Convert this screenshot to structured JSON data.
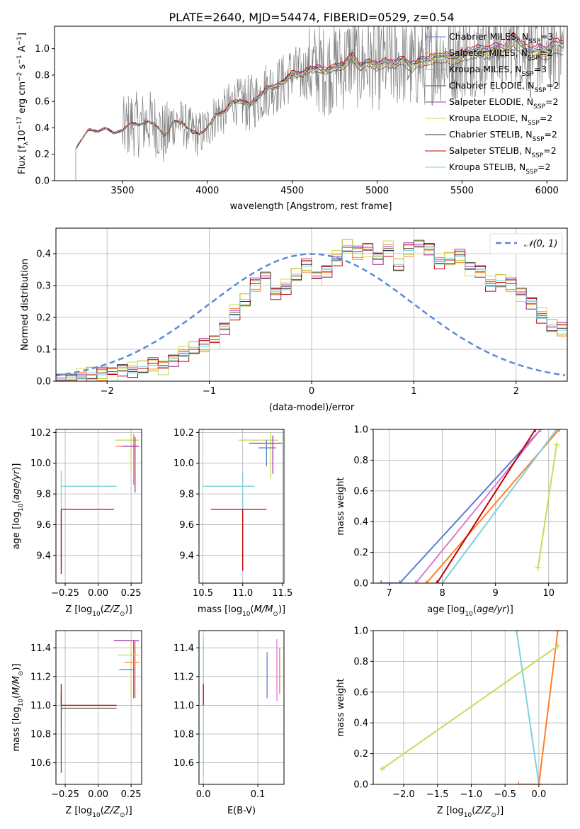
{
  "figure_title": "PLATE=2640, MJD=54474, FIBERID=0529, z=0.54",
  "colors": {
    "chabrier_miles": "#5b7fd6",
    "salpeter_miles": "#b8b800",
    "kroupa_miles": "#ff7f2a",
    "chabrier_elodie": "#555555",
    "salpeter_elodie": "#9b30b0",
    "kroupa_elodie": "#c6dc5a",
    "chabrier_stelib": "#333333",
    "salpeter_stelib": "#c00000",
    "kroupa_stelib": "#7fd0dc",
    "data": "#808080",
    "gaussian": "#5b8ad6",
    "grid": "#b0b0b0"
  },
  "chart_data": [
    {
      "id": "spectrum",
      "type": "line",
      "title": "PLATE=2640, MJD=54474, FIBERID=0529, z=0.54",
      "xlabel": "wavelength [Angstrom, rest frame]",
      "ylabel_parts": [
        "Flux [f",
        "λ",
        "10",
        "−17",
        " erg cm",
        "−2",
        " s",
        "−1",
        " A",
        "−1",
        "]"
      ],
      "xlim": [
        3100,
        6120
      ],
      "ylim": [
        0,
        1.17
      ],
      "xticks": [
        3500,
        4000,
        4500,
        5000,
        5500,
        6000
      ],
      "yticks": [
        0.0,
        0.2,
        0.4,
        0.6,
        0.8,
        1.0
      ],
      "grid": false,
      "legend_position": "top-right",
      "legend": [
        {
          "label": "Chabrier MILES, N",
          "sub": "SSP",
          "suffix": "=3",
          "color": "#5b7fd6"
        },
        {
          "label": "Salpeter MILES, N",
          "sub": "SSP",
          "suffix": "=2",
          "color": "#b8b800"
        },
        {
          "label": "Kroupa MILES, N",
          "sub": "SSP",
          "suffix": "=3",
          "color": "#ff7f2a"
        },
        {
          "label": "Chabrier ELODIE, N",
          "sub": "SSP",
          "suffix": "=2",
          "color": "#555555"
        },
        {
          "label": "Salpeter ELODIE, N",
          "sub": "SSP",
          "suffix": "=2",
          "color": "#9b30b0"
        },
        {
          "label": "Kroupa ELODIE, N",
          "sub": "SSP",
          "suffix": "=2",
          "color": "#c6dc5a"
        },
        {
          "label": "Chabrier STELIB, N",
          "sub": "SSP",
          "suffix": "=2",
          "color": "#333333"
        },
        {
          "label": "Salpeter STELIB, N",
          "sub": "SSP",
          "suffix": "=2",
          "color": "#c00000"
        },
        {
          "label": "Kroupa STELIB, N",
          "sub": "SSP",
          "suffix": "=2",
          "color": "#7fd0dc"
        }
      ],
      "model_continuum": {
        "x": [
          3225,
          3300,
          3350,
          3400,
          3450,
          3500,
          3550,
          3600,
          3650,
          3700,
          3750,
          3800,
          3850,
          3900,
          3950,
          4000,
          4050,
          4100,
          4150,
          4200,
          4250,
          4300,
          4350,
          4400,
          4450,
          4500,
          4550,
          4600,
          4650,
          4700,
          4750,
          4800,
          4850,
          4900,
          4950,
          5000,
          5050,
          5100,
          5150,
          5200,
          5250,
          5300,
          5350,
          5400,
          5450,
          5500,
          5550,
          5600,
          5650,
          5700,
          5750,
          5800,
          5850,
          5900,
          5950,
          6000,
          6050,
          6100
        ],
        "y": [
          0.24,
          0.39,
          0.37,
          0.4,
          0.36,
          0.38,
          0.44,
          0.42,
          0.45,
          0.42,
          0.33,
          0.45,
          0.44,
          0.38,
          0.35,
          0.4,
          0.5,
          0.52,
          0.6,
          0.6,
          0.58,
          0.63,
          0.7,
          0.71,
          0.75,
          0.82,
          0.8,
          0.84,
          0.85,
          0.83,
          0.86,
          0.87,
          0.95,
          0.86,
          0.9,
          0.87,
          0.9,
          0.88,
          0.92,
          0.86,
          0.9,
          0.91,
          0.93,
          0.94,
          0.92,
          0.95,
          0.97,
          0.99,
          0.97,
          1.0,
          0.98,
          1.08,
          1.02,
          0.96,
          0.99,
          0.97,
          1.03,
          1.01
        ]
      },
      "series_offsets": [
        0.03,
        0.0,
        -0.03,
        -0.06,
        0.02,
        0.01,
        0.0,
        0.05,
        -0.01
      ]
    },
    {
      "id": "residuals",
      "type": "histogram",
      "xlabel": "(data-model)/error",
      "ylabel": "Normed distribution",
      "xlim": [
        -2.5,
        2.5
      ],
      "ylim": [
        0,
        0.48
      ],
      "xticks": [
        -2,
        -1,
        0,
        1,
        2
      ],
      "yticks": [
        0.0,
        0.1,
        0.2,
        0.3,
        0.4
      ],
      "grid": true,
      "legend_position": "top-right",
      "legend": [
        {
          "label": "𝒩(0, 1)",
          "color": "#5b8ad6",
          "style": "dashed"
        }
      ],
      "bin_width": 0.1,
      "bins_from": -2.5,
      "base_values": [
        0.01,
        0.01,
        0.01,
        0.02,
        0.02,
        0.03,
        0.04,
        0.03,
        0.04,
        0.05,
        0.05,
        0.07,
        0.08,
        0.1,
        0.11,
        0.13,
        0.17,
        0.21,
        0.25,
        0.3,
        0.33,
        0.28,
        0.29,
        0.33,
        0.36,
        0.33,
        0.35,
        0.38,
        0.42,
        0.4,
        0.42,
        0.39,
        0.41,
        0.36,
        0.41,
        0.43,
        0.42,
        0.37,
        0.38,
        0.39,
        0.36,
        0.35,
        0.3,
        0.31,
        0.3,
        0.28,
        0.25,
        0.2,
        0.17,
        0.16,
        0.15,
        0.12,
        0.11,
        0.1,
        0.09,
        0.08,
        0.07,
        0.06,
        0.05,
        0.04,
        0.03,
        0.03,
        0.02,
        0.02,
        0.02,
        0.03,
        0.03,
        0.02,
        0.03,
        0.02,
        0.02,
        0.02,
        0.02,
        0.02,
        0.02,
        0.02
      ],
      "series_jitter": [
        0.0,
        0.02,
        -0.015,
        0.01,
        -0.02,
        0.025,
        -0.01,
        0.015,
        -0.005
      ]
    },
    {
      "id": "z-age",
      "type": "scatter",
      "xlabel": "Z [log10(Z/Z☉)]",
      "ylabel": "age  [log10(age/yr)]",
      "xlim": [
        -0.32,
        0.33
      ],
      "ylim": [
        9.22,
        10.22
      ],
      "xticks": [
        -0.25,
        0.0,
        0.25
      ],
      "yticks": [
        9.4,
        9.6,
        9.8,
        10.0,
        10.2
      ],
      "grid": true,
      "points": [
        {
          "x": -0.28,
          "xerr": [
            0.0,
            0.42
          ],
          "y": 9.85,
          "yerr": [
            0.5,
            0.1
          ],
          "color": "#7fd0dc"
        },
        {
          "x": -0.28,
          "xerr": [
            0.0,
            0.4
          ],
          "y": 9.7,
          "yerr": [
            0.42,
            0.0
          ],
          "color": "#c00000"
        },
        {
          "x": 0.25,
          "xerr": [
            0.12,
            0.06
          ],
          "y": 10.15,
          "yerr": [
            0.2,
            0.05
          ],
          "color": "#c6dc5a"
        },
        {
          "x": 0.27,
          "xerr": [
            0.14,
            0.04
          ],
          "y": 10.11,
          "yerr": [
            0.25,
            0.08
          ],
          "color": "#ff7f2a"
        },
        {
          "x": 0.28,
          "xerr": [
            0.1,
            0.03
          ],
          "y": 10.11,
          "yerr": [
            0.3,
            0.06
          ],
          "color": "#9b30b0"
        }
      ]
    },
    {
      "id": "mass-age",
      "type": "scatter",
      "xlabel": "mass [log10(M/M☉)]",
      "ylabel": "",
      "xlim": [
        10.45,
        11.52
      ],
      "ylim": [
        9.22,
        10.22
      ],
      "xticks": [
        10.5,
        11.0,
        11.5
      ],
      "yticks": [
        9.4,
        9.6,
        9.8,
        10.0,
        10.2
      ],
      "grid": true,
      "points": [
        {
          "x": 11.0,
          "xerr": [
            0.5,
            0.15
          ],
          "y": 9.85,
          "yerr": [
            0.55,
            0.1
          ],
          "color": "#7fd0dc"
        },
        {
          "x": 11.0,
          "xerr": [
            0.4,
            0.3
          ],
          "y": 9.7,
          "yerr": [
            0.4,
            0.0
          ],
          "color": "#c00000"
        },
        {
          "x": 11.35,
          "xerr": [
            0.4,
            0.1
          ],
          "y": 10.15,
          "yerr": [
            0.25,
            0.05
          ],
          "color": "#c6dc5a"
        },
        {
          "x": 11.38,
          "xerr": [
            0.3,
            0.12
          ],
          "y": 10.13,
          "yerr": [
            0.2,
            0.05
          ],
          "color": "#9b30b0"
        },
        {
          "x": 11.3,
          "xerr": [
            0.1,
            0.12
          ],
          "y": 10.1,
          "yerr": [
            0.12,
            0.05
          ],
          "color": "#5b7fd6"
        }
      ]
    },
    {
      "id": "age-cdf",
      "type": "line",
      "xlabel": "age  [log10(age/yr)]",
      "ylabel": "mass weight",
      "xlim": [
        6.7,
        10.35
      ],
      "ylim": [
        0,
        1.0
      ],
      "xticks": [
        7,
        8,
        9,
        10
      ],
      "yticks": [
        0.0,
        0.2,
        0.4,
        0.6,
        0.8,
        1.0
      ],
      "grid": true,
      "series": [
        {
          "x": [
            6.85,
            7.2,
            9.85
          ],
          "y": [
            0.0,
            0.0,
            1.0
          ],
          "color": "#5b7fd6"
        },
        {
          "x": [
            7.7,
            10.2
          ],
          "y": [
            0.0,
            1.0
          ],
          "color": "#ff7f2a"
        },
        {
          "x": [
            8.0,
            10.15
          ],
          "y": [
            0.0,
            1.0
          ],
          "color": "#7fd0dc"
        },
        {
          "x": [
            7.5,
            9.85
          ],
          "y": [
            0.0,
            1.0
          ],
          "color": "#e07ad0"
        },
        {
          "x": [
            7.9,
            9.75
          ],
          "y": [
            0.0,
            1.0
          ],
          "color": "#c00000"
        },
        {
          "x": [
            9.8,
            10.15
          ],
          "y": [
            0.1,
            0.9
          ],
          "color": "#c6dc5a"
        }
      ]
    },
    {
      "id": "z-mass",
      "type": "scatter",
      "xlabel": "Z [log10(Z/Z☉)]",
      "ylabel": "mass [log10(M/M☉)]",
      "xlim": [
        -0.32,
        0.33
      ],
      "ylim": [
        10.45,
        11.52
      ],
      "xticks": [
        -0.25,
        0.0,
        0.25
      ],
      "yticks": [
        10.6,
        10.8,
        11.0,
        11.2,
        11.4
      ],
      "grid": true,
      "points": [
        {
          "x": -0.28,
          "xerr": [
            0.0,
            0.42
          ],
          "y": 10.98,
          "yerr": [
            0.45,
            0.1
          ],
          "color": "#555555"
        },
        {
          "x": -0.28,
          "xerr": [
            0.0,
            0.42
          ],
          "y": 11.0,
          "yerr": [
            0.0,
            0.15
          ],
          "color": "#c00000"
        },
        {
          "x": 0.27,
          "xerr": [
            0.15,
            0.04
          ],
          "y": 11.45,
          "yerr": [
            0.4,
            0.0
          ],
          "color": "#9b30b0"
        },
        {
          "x": 0.25,
          "xerr": [
            0.1,
            0.06
          ],
          "y": 11.35,
          "yerr": [
            0.3,
            0.1
          ],
          "color": "#c6dc5a"
        },
        {
          "x": 0.28,
          "xerr": [
            0.08,
            0.03
          ],
          "y": 11.3,
          "yerr": [
            0.25,
            0.15
          ],
          "color": "#ff7f2a"
        },
        {
          "x": 0.28,
          "xerr": [
            0.12,
            0.0
          ],
          "y": 11.25,
          "yerr": [
            0.0,
            0.0
          ],
          "color": "#5b7fd6"
        }
      ]
    },
    {
      "id": "ebv-mass",
      "type": "scatter",
      "xlabel": "E(B-V)",
      "ylabel": "",
      "xlim": [
        -0.008,
        0.148
      ],
      "ylim": [
        10.45,
        11.52
      ],
      "xticks": [
        0.0,
        0.1
      ],
      "yticks": [
        10.6,
        10.8,
        11.0,
        11.2,
        11.4
      ],
      "grid": true,
      "points": [
        {
          "x": 0.0,
          "xerr": [
            0,
            0
          ],
          "y": 11.0,
          "yerr": [
            0.5,
            0.47
          ],
          "color": "#7fd0dc"
        },
        {
          "x": 0.0,
          "xerr": [
            0,
            0
          ],
          "y": 11.0,
          "yerr": [
            0.0,
            0.15
          ],
          "color": "#c00000"
        },
        {
          "x": 0.117,
          "xerr": [
            0,
            0
          ],
          "y": 11.2,
          "yerr": [
            0.15,
            0.17
          ],
          "color": "#5b7fd6"
        },
        {
          "x": 0.135,
          "xerr": [
            0,
            0
          ],
          "y": 11.2,
          "yerr": [
            0.17,
            0.26
          ],
          "color": "#e07ad0"
        },
        {
          "x": 0.14,
          "xerr": [
            0,
            0
          ],
          "y": 11.2,
          "yerr": [
            0.12,
            0.2
          ],
          "color": "#ff7f2a"
        }
      ]
    },
    {
      "id": "z-cdf",
      "type": "line",
      "xlabel": "Z [log10(Z/Z☉)]",
      "ylabel": "mass weight",
      "xlim": [
        -2.45,
        0.42
      ],
      "ylim": [
        0,
        1.0
      ],
      "xticks": [
        -2.0,
        -1.5,
        -1.0,
        -0.5,
        0.0
      ],
      "yticks": [
        0.0,
        0.2,
        0.4,
        0.6,
        0.8,
        1.0
      ],
      "grid": true,
      "series": [
        {
          "x": [
            -0.33,
            0.0
          ],
          "y": [
            1.0,
            0.0
          ],
          "color": "#7fd0dc"
        },
        {
          "x": [
            -0.3,
            0.0,
            0.28
          ],
          "y": [
            0.0,
            0.0,
            1.0
          ],
          "color": "#ff7f2a"
        },
        {
          "x": [
            -2.32,
            0.28
          ],
          "y": [
            0.1,
            0.9
          ],
          "color": "#c6dc5a"
        }
      ]
    }
  ]
}
